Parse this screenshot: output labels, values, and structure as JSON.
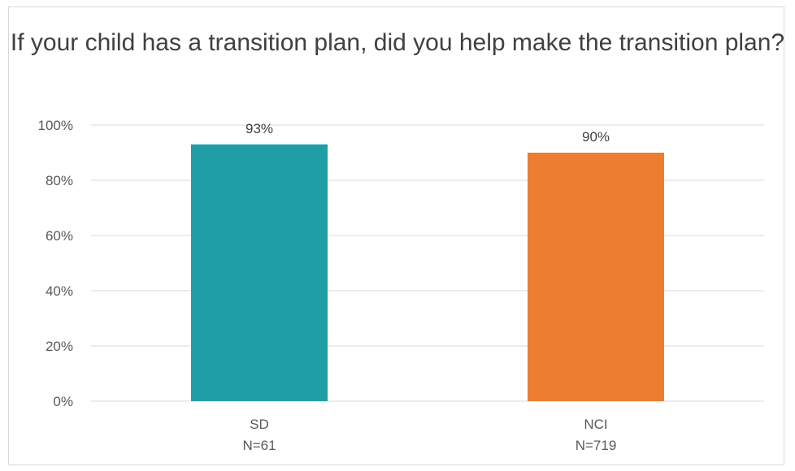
{
  "chart_data": {
    "type": "bar",
    "title": "If your child has a transition plan, did you help make the transition plan?",
    "categories": [
      "SD",
      "NCI"
    ],
    "category_sublabels": [
      "N=61",
      "N=719"
    ],
    "values": [
      93,
      90
    ],
    "data_labels": [
      "93%",
      "90%"
    ],
    "colors": [
      "#1f9ea6",
      "#ed7d31"
    ],
    "ylim": [
      0,
      100
    ],
    "yticks": [
      0,
      20,
      40,
      60,
      80,
      100
    ],
    "ytick_labels": [
      "0%",
      "20%",
      "40%",
      "60%",
      "80%",
      "100%"
    ],
    "grid": true,
    "legend": "none"
  }
}
